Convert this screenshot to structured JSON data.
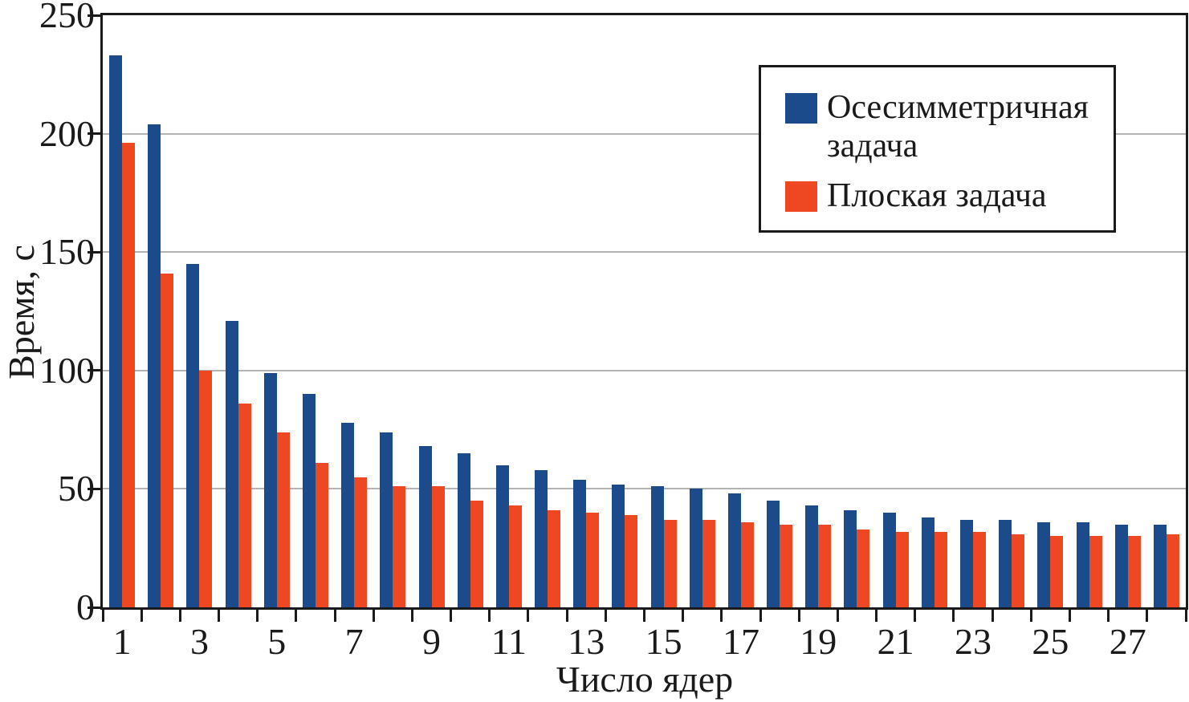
{
  "chart_data": {
    "type": "bar",
    "title": "",
    "xlabel": "Число ядер",
    "ylabel": "Время, с",
    "ylim": [
      0,
      250
    ],
    "yticks": [
      0,
      50,
      100,
      150,
      200,
      250
    ],
    "grid": "horizontal gray lines at 50,100,150,200",
    "legend_position": "upper right, framed box",
    "categories": [
      1,
      2,
      3,
      4,
      5,
      6,
      7,
      8,
      9,
      10,
      11,
      12,
      13,
      14,
      15,
      16,
      17,
      18,
      19,
      20,
      21,
      22,
      23,
      24,
      25,
      26,
      27,
      28
    ],
    "xtick_labels_shown": [
      "1",
      "3",
      "5",
      "7",
      "9",
      "11",
      "13",
      "15",
      "17",
      "19",
      "21",
      "23",
      "25",
      "27"
    ],
    "series": [
      {
        "name": "Осесимметричная задача",
        "color": "#1c4b8c",
        "values": [
          233,
          204,
          145,
          121,
          99,
          90,
          78,
          74,
          68,
          65,
          60,
          58,
          54,
          52,
          51,
          50,
          48,
          45,
          43,
          41,
          40,
          38,
          37,
          37,
          36,
          36,
          35,
          35
        ]
      },
      {
        "name": "Плоская задача",
        "color": "#ee4823",
        "values": [
          196,
          141,
          100,
          86,
          74,
          61,
          55,
          51,
          51,
          45,
          43,
          41,
          40,
          39,
          37,
          37,
          36,
          35,
          35,
          33,
          32,
          32,
          32,
          31,
          30,
          30,
          30,
          31
        ]
      }
    ]
  },
  "colors": {
    "axis_frame": "#1a1a1a",
    "gridline": "#b3b3b3",
    "background": "#ffffff",
    "series_blue": "#1c4b8c",
    "series_orange": "#ee4823"
  },
  "legend": {
    "items": [
      {
        "label": "Осесимметричная задача",
        "swatch": "blue-square"
      },
      {
        "label": "Плоская задача",
        "swatch": "orange-square"
      }
    ]
  }
}
